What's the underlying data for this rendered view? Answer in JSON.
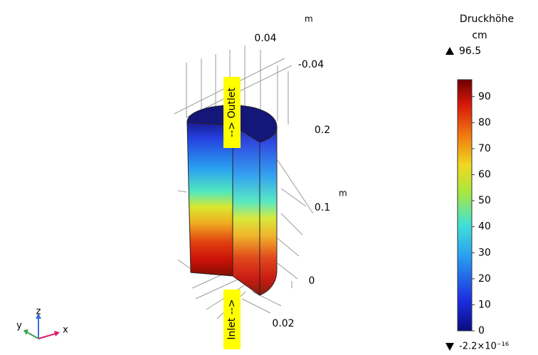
{
  "chart_data": {
    "type": "surface3d",
    "colorbar_title": "Druckhöhe",
    "colorbar_unit": "cm",
    "max": {
      "value": 96.5,
      "label": "96.5"
    },
    "min": {
      "value": -2.2e-16,
      "label": "-2.2×10⁻¹⁶"
    },
    "ylim": [
      -2.2e-16,
      96.5
    ],
    "yticks": [
      0,
      10,
      20,
      30,
      40,
      50,
      60,
      70,
      80,
      90
    ],
    "annotations": [
      "--> Outlet",
      "Inlet -->"
    ],
    "axes": {
      "x_ticks": [
        0.02
      ],
      "y_ticks": [
        0.04,
        -0.04
      ],
      "y_unit": "m",
      "z_ticks": [
        0.2,
        0.1,
        0
      ],
      "z_unit": "m",
      "triad": [
        "x",
        "y",
        "z"
      ]
    }
  }
}
